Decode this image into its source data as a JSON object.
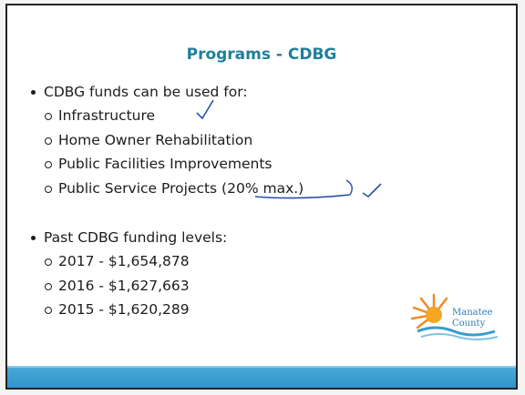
{
  "slide": {
    "title": "Programs - CDBG",
    "sections": [
      {
        "text": "CDBG funds can be used for:",
        "items": [
          "Infrastructure",
          "Home Owner Rehabilitation",
          "Public Facilities Improvements",
          "Public Service Projects (20% max.)"
        ]
      },
      {
        "text": "Past CDBG funding levels:",
        "items": [
          "2017 - $1,654,878",
          "2016 - $1,627,663",
          "2015 - $1,620,289"
        ]
      }
    ],
    "logo": "Manatee County"
  }
}
